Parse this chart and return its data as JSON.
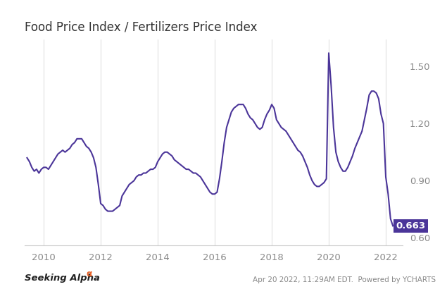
{
  "title": "Food Price Index / Fertilizers Price Index",
  "title_fontsize": 12,
  "line_color": "#4b3599",
  "line_width": 1.5,
  "background_color": "#ffffff",
  "grid_color": "#e0e0e0",
  "last_value": 0.663,
  "last_value_box_color": "#4b3599",
  "last_value_text_color": "#ffffff",
  "yticks": [
    0.6,
    0.9,
    1.2,
    1.5
  ],
  "xticklabels": [
    "2010",
    "2012",
    "2014",
    "2016",
    "2018",
    "2020",
    "2022"
  ],
  "footer_right": "Apr 20 2022, 11:29AM EDT.  Powered by YCHARTS",
  "dates": [
    2009.417,
    2009.5,
    2009.583,
    2009.667,
    2009.75,
    2009.833,
    2009.917,
    2010.0,
    2010.083,
    2010.167,
    2010.25,
    2010.333,
    2010.417,
    2010.5,
    2010.583,
    2010.667,
    2010.75,
    2010.833,
    2010.917,
    2011.0,
    2011.083,
    2011.167,
    2011.25,
    2011.333,
    2011.417,
    2011.5,
    2011.583,
    2011.667,
    2011.75,
    2011.833,
    2011.917,
    2012.0,
    2012.083,
    2012.167,
    2012.25,
    2012.333,
    2012.417,
    2012.5,
    2012.583,
    2012.667,
    2012.75,
    2012.833,
    2012.917,
    2013.0,
    2013.083,
    2013.167,
    2013.25,
    2013.333,
    2013.417,
    2013.5,
    2013.583,
    2013.667,
    2013.75,
    2013.833,
    2013.917,
    2014.0,
    2014.083,
    2014.167,
    2014.25,
    2014.333,
    2014.417,
    2014.5,
    2014.583,
    2014.667,
    2014.75,
    2014.833,
    2014.917,
    2015.0,
    2015.083,
    2015.167,
    2015.25,
    2015.333,
    2015.417,
    2015.5,
    2015.583,
    2015.667,
    2015.75,
    2015.833,
    2015.917,
    2016.0,
    2016.083,
    2016.167,
    2016.25,
    2016.333,
    2016.417,
    2016.5,
    2016.583,
    2016.667,
    2016.75,
    2016.833,
    2016.917,
    2017.0,
    2017.083,
    2017.167,
    2017.25,
    2017.333,
    2017.417,
    2017.5,
    2017.583,
    2017.667,
    2017.75,
    2017.833,
    2017.917,
    2018.0,
    2018.083,
    2018.167,
    2018.25,
    2018.333,
    2018.417,
    2018.5,
    2018.583,
    2018.667,
    2018.75,
    2018.833,
    2018.917,
    2019.0,
    2019.083,
    2019.167,
    2019.25,
    2019.333,
    2019.417,
    2019.5,
    2019.583,
    2019.667,
    2019.75,
    2019.833,
    2019.917,
    2020.0,
    2020.083,
    2020.167,
    2020.25,
    2020.333,
    2020.417,
    2020.5,
    2020.583,
    2020.667,
    2020.75,
    2020.833,
    2020.917,
    2021.0,
    2021.083,
    2021.167,
    2021.25,
    2021.333,
    2021.417,
    2021.5,
    2021.583,
    2021.667,
    2021.75,
    2021.833,
    2021.917,
    2022.0,
    2022.083,
    2022.167,
    2022.25
  ],
  "values": [
    1.02,
    1.0,
    0.97,
    0.95,
    0.96,
    0.94,
    0.96,
    0.97,
    0.97,
    0.96,
    0.98,
    1.0,
    1.02,
    1.04,
    1.05,
    1.06,
    1.05,
    1.06,
    1.07,
    1.09,
    1.1,
    1.12,
    1.12,
    1.12,
    1.1,
    1.08,
    1.07,
    1.05,
    1.02,
    0.97,
    0.88,
    0.78,
    0.77,
    0.75,
    0.74,
    0.74,
    0.74,
    0.75,
    0.76,
    0.77,
    0.82,
    0.84,
    0.86,
    0.88,
    0.89,
    0.9,
    0.92,
    0.93,
    0.93,
    0.94,
    0.94,
    0.95,
    0.96,
    0.96,
    0.97,
    1.0,
    1.02,
    1.04,
    1.05,
    1.05,
    1.04,
    1.03,
    1.01,
    1.0,
    0.99,
    0.98,
    0.97,
    0.96,
    0.96,
    0.95,
    0.94,
    0.94,
    0.93,
    0.92,
    0.9,
    0.88,
    0.86,
    0.84,
    0.83,
    0.83,
    0.84,
    0.91,
    1.0,
    1.1,
    1.18,
    1.22,
    1.26,
    1.28,
    1.29,
    1.3,
    1.3,
    1.3,
    1.28,
    1.25,
    1.23,
    1.22,
    1.2,
    1.18,
    1.17,
    1.18,
    1.22,
    1.25,
    1.27,
    1.3,
    1.28,
    1.22,
    1.2,
    1.18,
    1.17,
    1.16,
    1.14,
    1.12,
    1.1,
    1.08,
    1.06,
    1.05,
    1.03,
    1.0,
    0.97,
    0.93,
    0.9,
    0.88,
    0.87,
    0.87,
    0.88,
    0.89,
    0.91,
    1.57,
    1.4,
    1.18,
    1.05,
    1.0,
    0.97,
    0.95,
    0.95,
    0.97,
    1.0,
    1.03,
    1.07,
    1.1,
    1.13,
    1.16,
    1.22,
    1.28,
    1.35,
    1.37,
    1.37,
    1.36,
    1.33,
    1.25,
    1.2,
    0.92,
    0.83,
    0.7,
    0.663
  ]
}
